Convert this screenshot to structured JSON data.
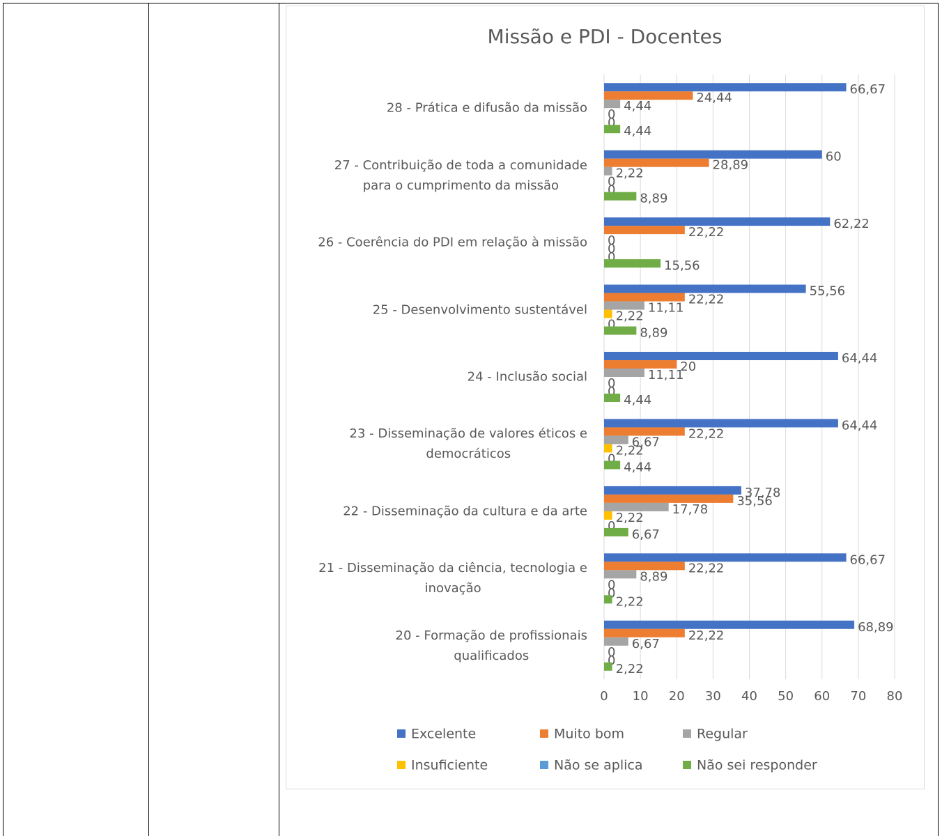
{
  "chart_data": {
    "type": "barh",
    "title": "Missão e PDI - Docentes",
    "categories": [
      "28 - Prática e difusão da missão",
      "27 - Contribuição de toda a comunidade\npara o cumprimento da missão",
      "26 - Coerência do PDI em relação à missão",
      "25 - Desenvolvimento sustentável",
      "24 - Inclusão social",
      "23 - Disseminação de valores éticos e\ndemocráticos",
      "22 - Disseminação da cultura e da arte",
      "21 - Disseminação da ciência, tecnologia e\ninovação",
      "20 - Formação de profissionais\nqualificados"
    ],
    "series": [
      {
        "name": "Excelente",
        "color": "#4472c4",
        "values": [
          66.67,
          60,
          62.22,
          55.56,
          64.44,
          64.44,
          37.78,
          66.67,
          68.89
        ],
        "value_labels": [
          "66,67",
          "60",
          "62,22",
          "55,56",
          "64,44",
          "64,44",
          "37,78",
          "66,67",
          "68,89"
        ]
      },
      {
        "name": "Muito bom",
        "color": "#ed7d31",
        "values": [
          24.44,
          28.89,
          22.22,
          22.22,
          20,
          22.22,
          35.56,
          22.22,
          22.22
        ],
        "value_labels": [
          "24,44",
          "28,89",
          "22,22",
          "22,22",
          "20",
          "22,22",
          "35,56",
          "22,22",
          "22,22"
        ]
      },
      {
        "name": "Regular",
        "color": "#a5a5a5",
        "values": [
          4.44,
          2.22,
          0,
          11.11,
          11.11,
          6.67,
          17.78,
          8.89,
          6.67
        ],
        "value_labels": [
          "4,44",
          "2,22",
          "0",
          "11,11",
          "11,11",
          "6,67",
          "17,78",
          "8,89",
          "6,67"
        ]
      },
      {
        "name": "Insuficiente",
        "color": "#ffc000",
        "values": [
          0,
          0,
          0,
          2.22,
          0,
          2.22,
          2.22,
          0,
          0
        ],
        "value_labels": [
          "0",
          "0",
          "0",
          "2,22",
          "0",
          "2,22",
          "2,22",
          "0",
          "0"
        ]
      },
      {
        "name": "Não se aplica",
        "color": "#5b9bd5",
        "values": [
          0,
          0,
          0,
          0,
          0,
          0,
          0,
          0,
          0
        ],
        "value_labels": [
          "0",
          "0",
          "0",
          "0",
          "0",
          "0",
          "0",
          "0",
          "0"
        ]
      },
      {
        "name": "Não sei responder",
        "color": "#70ad47",
        "values": [
          4.44,
          8.89,
          15.56,
          8.89,
          4.44,
          4.44,
          6.67,
          2.22,
          2.22
        ],
        "value_labels": [
          "4,44",
          "8,89",
          "15,56",
          "8,89",
          "4,44",
          "4,44",
          "6,67",
          "2,22",
          "2,22"
        ]
      }
    ],
    "xlim": [
      0,
      80
    ],
    "xticks": [
      0,
      10,
      20,
      30,
      40,
      50,
      60,
      70,
      80
    ],
    "grid": true,
    "legend": "bottom"
  }
}
